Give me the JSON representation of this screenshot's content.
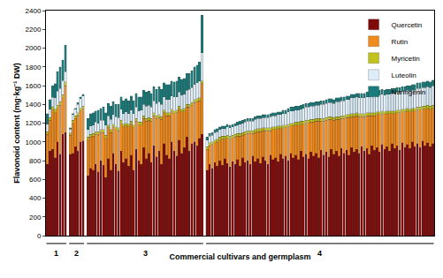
{
  "chart_data": {
    "type": "bar",
    "stacked": true,
    "grid": false,
    "legend": "upper right",
    "tick_labels": "y",
    "x_label": "Commercial cultivars and germplasm",
    "y_label": "Flavonoid content (mg·kg⁻¹ DW)",
    "ylim": [
      0,
      2400
    ],
    "yticks": [
      0,
      200,
      400,
      600,
      800,
      1000,
      1200,
      1400,
      1600,
      1800,
      2000,
      2200,
      2400
    ],
    "categories": [
      null,
      null,
      null,
      null,
      null,
      null,
      null,
      null,
      null,
      null,
      null,
      null,
      null,
      null,
      null,
      null,
      null,
      null,
      null,
      null,
      null,
      null,
      null,
      null,
      null,
      null,
      null,
      null,
      null,
      null,
      null,
      null,
      null,
      null,
      null,
      null,
      null,
      null,
      null,
      null,
      null,
      null,
      null,
      null,
      null,
      null,
      null,
      null,
      null,
      null,
      null,
      null,
      null,
      null,
      null,
      null,
      null,
      null,
      null,
      null,
      null,
      null,
      null,
      null,
      null,
      null,
      null,
      null,
      null,
      null,
      null,
      null,
      null,
      null,
      null,
      null,
      null,
      null,
      null,
      null,
      null,
      null,
      null,
      null,
      null,
      null,
      null,
      null,
      null,
      null,
      null,
      null,
      null,
      null,
      null,
      null,
      null,
      null,
      null,
      null,
      null,
      null,
      null,
      null,
      null,
      null,
      null,
      null,
      null,
      null,
      null,
      null,
      null,
      null,
      null,
      null,
      null,
      null,
      null,
      null,
      null,
      null,
      null,
      null,
      null,
      null,
      null,
      null,
      null,
      null,
      null,
      null,
      null,
      null,
      null,
      null,
      null,
      null,
      null,
      null,
      null,
      null,
      null,
      null,
      null,
      null,
      null,
      null,
      null,
      null,
      null,
      null,
      null
    ],
    "groups": [
      "1",
      "1",
      "1",
      "1",
      "1",
      "1",
      "1",
      "1",
      null,
      "2",
      "2",
      "2",
      "2",
      "2",
      "2",
      null,
      "3",
      "3",
      "3",
      "3",
      "3",
      "3",
      "3",
      "3",
      "3",
      "3",
      "3",
      "3",
      "3",
      "3",
      "3",
      "3",
      "3",
      "3",
      "3",
      "3",
      "3",
      "3",
      "3",
      "3",
      "3",
      "3",
      "3",
      "3",
      "3",
      "3",
      "3",
      "3",
      "3",
      "3",
      "3",
      "3",
      "3",
      "3",
      "3",
      "3",
      "3",
      "3",
      "3",
      "3",
      "3",
      "3",
      null,
      "4",
      "4",
      "4",
      "4",
      "4",
      "4",
      "4",
      "4",
      "4",
      "4",
      "4",
      "4",
      "4",
      "4",
      "4",
      "4",
      "4",
      "4",
      "4",
      "4",
      "4",
      "4",
      "4",
      "4",
      "4",
      "4",
      "4",
      "4",
      "4",
      "4",
      "4",
      "4",
      "4",
      "4",
      "4",
      "4",
      "4",
      "4",
      "4",
      "4",
      "4",
      "4",
      "4",
      "4",
      "4",
      "4",
      "4",
      "4",
      "4",
      "4",
      "4",
      "4",
      "4",
      "4",
      "4",
      "4",
      "4",
      "4",
      "4",
      "4",
      "4",
      "4",
      "4",
      "4",
      "4",
      "4",
      "4",
      "4",
      "4",
      "4",
      "4",
      "4",
      "4",
      "4",
      "4",
      "4",
      "4",
      "4",
      "4",
      "4",
      "4",
      "4",
      "4",
      "4",
      "4",
      "4",
      "4",
      "4",
      "4",
      "4"
    ],
    "series": [
      {
        "name": "Quercetin",
        "color": "#7f0a0a",
        "values": [
          760,
          900,
          920,
          830,
          1000,
          870,
          1080,
          1100,
          null,
          870,
          880,
          950,
          900,
          1000,
          1010,
          null,
          640,
          720,
          700,
          760,
          680,
          800,
          750,
          620,
          820,
          700,
          880,
          760,
          690,
          900,
          780,
          820,
          740,
          860,
          700,
          920,
          800,
          760,
          940,
          820,
          880,
          780,
          960,
          840,
          900,
          760,
          980,
          860,
          820,
          1000,
          900,
          850,
          1020,
          880,
          940,
          1050,
          900,
          980,
          1000,
          960,
          1040,
          1080,
          null,
          700,
          760,
          720,
          780,
          740,
          800,
          750,
          820,
          770,
          730,
          790,
          760,
          810,
          740,
          830,
          780,
          800,
          760,
          850,
          790,
          820,
          770,
          840,
          800,
          760,
          860,
          810,
          830,
          790,
          870,
          820,
          850,
          800,
          880,
          830,
          860,
          810,
          900,
          840,
          870,
          820,
          890,
          850,
          880,
          830,
          910,
          860,
          890,
          840,
          920,
          870,
          900,
          850,
          930,
          880,
          910,
          860,
          940,
          890,
          920,
          880,
          950,
          900,
          930,
          870,
          960,
          910,
          940,
          890,
          970,
          920,
          950,
          900,
          980,
          930,
          960,
          910,
          990,
          940,
          970,
          930,
          1000,
          950,
          980,
          940,
          1010,
          960,
          990,
          950,
          980
        ]
      },
      {
        "name": "Rutin",
        "color": "#f08a1c",
        "values": [
          320,
          330,
          420,
          480,
          360,
          520,
          390,
          500,
          null,
          200,
          320,
          300,
          380,
          330,
          340,
          null,
          380,
          330,
          360,
          320,
          400,
          300,
          350,
          420,
          330,
          400,
          280,
          370,
          430,
          300,
          380,
          350,
          420,
          330,
          450,
          300,
          380,
          420,
          310,
          400,
          350,
          440,
          320,
          410,
          360,
          480,
          330,
          420,
          460,
          320,
          400,
          460,
          330,
          440,
          390,
          320,
          470,
          410,
          420,
          470,
          400,
          540,
          null,
          220,
          200,
          250,
          210,
          260,
          220,
          280,
          210,
          270,
          300,
          250,
          290,
          250,
          320,
          240,
          300,
          290,
          330,
          240,
          310,
          290,
          340,
          280,
          320,
          360,
          260,
          320,
          300,
          350,
          270,
          330,
          300,
          360,
          290,
          340,
          320,
          370,
          290,
          350,
          330,
          380,
          320,
          360,
          340,
          390,
          310,
          360,
          340,
          400,
          320,
          360,
          340,
          390,
          320,
          370,
          350,
          400,
          330,
          380,
          360,
          390,
          320,
          370,
          350,
          410,
          320,
          370,
          350,
          400,
          330,
          370,
          350,
          400,
          320,
          370,
          350,
          400,
          330,
          380,
          360,
          390,
          330,
          380,
          360,
          400,
          340,
          390,
          370,
          400,
          380
        ]
      },
      {
        "name": "Myricetin",
        "color": "#c2c21e",
        "values": [
          30,
          30,
          35,
          40,
          30,
          40,
          35,
          40,
          null,
          25,
          30,
          30,
          30,
          30,
          30,
          null,
          30,
          30,
          30,
          30,
          30,
          30,
          30,
          30,
          30,
          30,
          30,
          30,
          30,
          30,
          30,
          30,
          30,
          30,
          30,
          30,
          30,
          30,
          30,
          30,
          30,
          30,
          30,
          30,
          30,
          30,
          30,
          30,
          30,
          30,
          30,
          30,
          30,
          30,
          30,
          30,
          30,
          30,
          30,
          30,
          30,
          30,
          null,
          30,
          30,
          30,
          30,
          30,
          30,
          30,
          30,
          30,
          30,
          30,
          30,
          30,
          30,
          30,
          30,
          30,
          30,
          30,
          30,
          30,
          30,
          30,
          30,
          30,
          30,
          30,
          30,
          30,
          30,
          30,
          30,
          30,
          30,
          30,
          30,
          30,
          30,
          30,
          30,
          30,
          30,
          30,
          30,
          30,
          30,
          30,
          30,
          30,
          30,
          30,
          30,
          30,
          30,
          30,
          30,
          30,
          30,
          30,
          30,
          30,
          30,
          30,
          30,
          30,
          30,
          30,
          30,
          30,
          30,
          30,
          30,
          30,
          30,
          30,
          30,
          30,
          30,
          30,
          30,
          30,
          30,
          30,
          30,
          30,
          30,
          30,
          30,
          30,
          30
        ]
      },
      {
        "name": "Luteolin",
        "color": "#ddeef8",
        "values": [
          80,
          90,
          100,
          120,
          150,
          140,
          150,
          110,
          null,
          40,
          60,
          70,
          90,
          100,
          110,
          null,
          80,
          90,
          90,
          100,
          90,
          100,
          100,
          110,
          100,
          110,
          100,
          110,
          110,
          120,
          110,
          120,
          110,
          120,
          120,
          120,
          120,
          130,
          120,
          130,
          130,
          120,
          130,
          130,
          140,
          130,
          140,
          140,
          140,
          140,
          150,
          140,
          150,
          150,
          150,
          150,
          160,
          160,
          160,
          170,
          180,
          300,
          null,
          70,
          70,
          70,
          80,
          80,
          80,
          80,
          80,
          90,
          90,
          90,
          90,
          90,
          100,
          100,
          100,
          100,
          100,
          100,
          110,
          110,
          110,
          110,
          110,
          110,
          120,
          120,
          120,
          120,
          120,
          120,
          120,
          130,
          130,
          130,
          130,
          130,
          130,
          140,
          140,
          140,
          140,
          140,
          140,
          140,
          150,
          150,
          150,
          150,
          150,
          150,
          160,
          160,
          160,
          160,
          160,
          160,
          170,
          170,
          170,
          170,
          170,
          170,
          170,
          170,
          180,
          180,
          180,
          180,
          180,
          180,
          180,
          180,
          190,
          190,
          190,
          190,
          190,
          190,
          190,
          190,
          190,
          190,
          200,
          200,
          200,
          200,
          200,
          200,
          210
        ]
      },
      {
        "name": "Naringenin",
        "color": "#1b7b7b",
        "values": [
          110,
          100,
          125,
          150,
          210,
          230,
          215,
          280,
          null,
          15,
          10,
          10,
          20,
          20,
          20,
          null,
          120,
          130,
          130,
          120,
          140,
          130,
          140,
          130,
          130,
          140,
          140,
          130,
          140,
          130,
          140,
          140,
          140,
          150,
          140,
          150,
          150,
          140,
          150,
          150,
          150,
          150,
          150,
          150,
          160,
          160,
          150,
          160,
          160,
          160,
          160,
          170,
          160,
          170,
          170,
          180,
          170,
          180,
          190,
          190,
          200,
          400,
          null,
          30,
          30,
          30,
          30,
          30,
          30,
          30,
          30,
          30,
          30,
          30,
          30,
          30,
          30,
          30,
          30,
          30,
          30,
          30,
          30,
          30,
          30,
          30,
          30,
          30,
          30,
          30,
          30,
          30,
          30,
          40,
          40,
          40,
          40,
          40,
          40,
          40,
          40,
          40,
          40,
          40,
          40,
          40,
          40,
          40,
          40,
          40,
          40,
          40,
          40,
          40,
          40,
          40,
          40,
          40,
          40,
          40,
          40,
          40,
          40,
          50,
          50,
          50,
          50,
          50,
          50,
          50,
          50,
          50,
          50,
          50,
          50,
          50,
          50,
          50,
          50,
          50,
          50,
          50,
          50,
          60,
          60,
          60,
          60,
          60,
          60,
          60,
          60,
          60,
          60
        ]
      }
    ]
  }
}
